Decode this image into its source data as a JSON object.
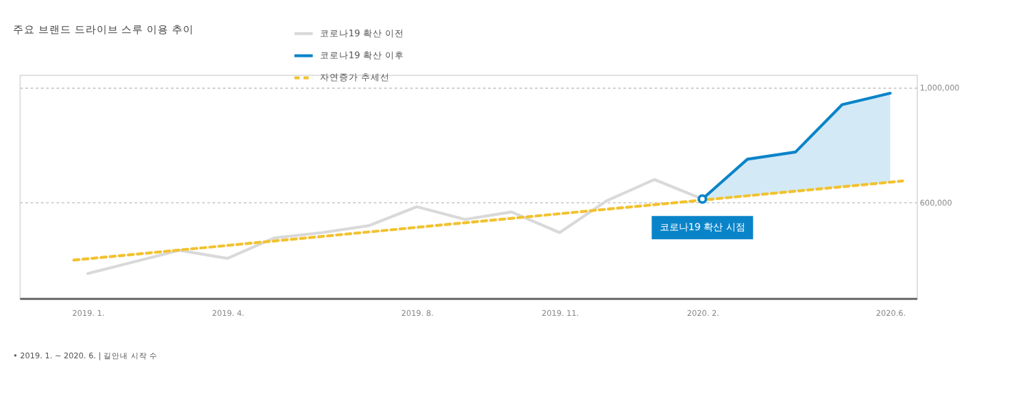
{
  "chart_data": {
    "type": "line",
    "title": "주요 브랜드 드라이브 스루 이용 추이",
    "xlim": [
      "2018-11-18",
      "2020-06-18"
    ],
    "ylim": [
      265000,
      1045000
    ],
    "xticks": [
      {
        "value": "2019-01",
        "label": "2019. 1."
      },
      {
        "value": "2019-04",
        "label": "2019. 4."
      },
      {
        "value": "2019-08",
        "label": "2019. 8."
      },
      {
        "value": "2019-11",
        "label": "2019. 11."
      },
      {
        "value": "2020-02",
        "label": "2020. 2."
      },
      {
        "value": "2020-06",
        "label": "2020.6."
      }
    ],
    "yticks": [
      {
        "value": 600000,
        "label": "600,000"
      },
      {
        "value": 1000000,
        "label": "1,000,000"
      }
    ],
    "grid": "y",
    "legend": "top",
    "series": [
      {
        "name": "코로나19 확산 이전",
        "color": "#d9d9d9",
        "x": [
          "2019-01",
          "2019-03",
          "2019-04",
          "2019-05",
          "2019-06",
          "2019-07",
          "2019-08",
          "2019-09",
          "2019-10",
          "2019-11",
          "2019-12",
          "2020-01",
          "2020-02"
        ],
        "values": [
          351000,
          432000,
          404000,
          475000,
          494000,
          518000,
          584000,
          540000,
          566000,
          494000,
          604000,
          679000,
          611000
        ]
      },
      {
        "name": "코로나19 확산 이후",
        "color": "#0a84c9",
        "x": [
          "2020-02",
          "2020-03",
          "2020-04",
          "2020-05",
          "2020-06"
        ],
        "values": [
          611000,
          750000,
          775000,
          940000,
          980000
        ],
        "lower": [
          607000,
          622000,
          638000,
          654000,
          670000
        ],
        "upper": [
          611000,
          750000,
          775000,
          940000,
          980000
        ]
      },
      {
        "name": "자연증가 추세선",
        "color": "#f2c230",
        "line_style": "dashed",
        "x": [
          "2018-12-23",
          "2020-06-09"
        ],
        "values": [
          398000,
          674000
        ]
      }
    ],
    "annotations": [
      {
        "text": "코로나19 확산 시점",
        "x": "2020-02",
        "y": 611000
      },
      "• 2019. 1. ~ 2020. 6.  |  길안내 시작 수"
    ]
  }
}
